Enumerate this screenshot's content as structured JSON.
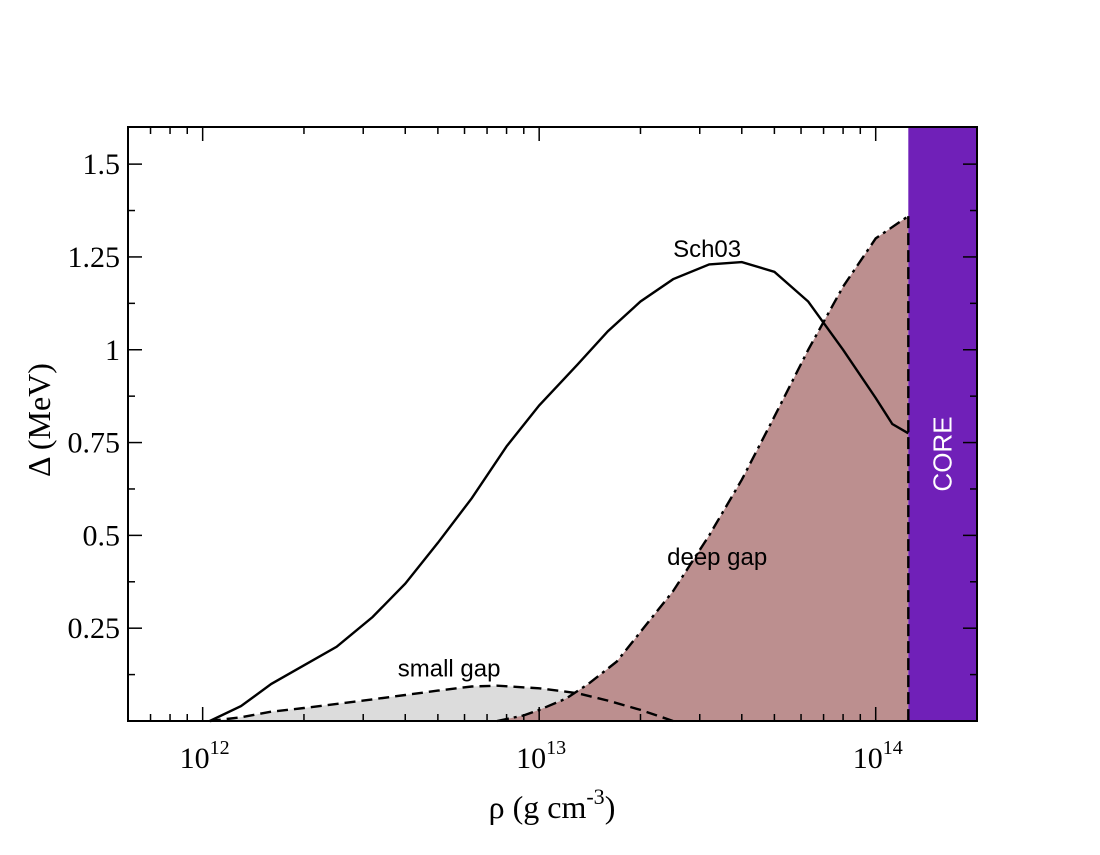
{
  "chart_data": {
    "type": "area",
    "xscale": "log",
    "xlim": [
      600000000000.0,
      200000000000000.0
    ],
    "ylim": [
      0,
      1.6
    ],
    "xlabel": {
      "base": "ρ (g cm",
      "sup": "-3",
      "close": ")"
    },
    "ylabel": "Δ (MeV)",
    "x_ticks": [
      {
        "value": 1000000000000.0,
        "base": "10",
        "exp": "12"
      },
      {
        "value": 10000000000000.0,
        "base": "10",
        "exp": "13"
      },
      {
        "value": 100000000000000.0,
        "base": "10",
        "exp": "14"
      }
    ],
    "y_ticks": [
      {
        "value": 0.25,
        "label": "0.25"
      },
      {
        "value": 0.5,
        "label": "0.5"
      },
      {
        "value": 0.75,
        "label": "0.75"
      },
      {
        "value": 1.0,
        "label": "1"
      },
      {
        "value": 1.25,
        "label": "1.25"
      },
      {
        "value": 1.5,
        "label": "1.5"
      }
    ],
    "series": [
      {
        "name": "Sch03",
        "style": "solid",
        "points": [
          [
            1050000000000.0,
            0.0
          ],
          [
            1300000000000.0,
            0.04
          ],
          [
            1600000000000.0,
            0.1
          ],
          [
            2000000000000.0,
            0.15
          ],
          [
            2500000000000.0,
            0.2
          ],
          [
            3200000000000.0,
            0.28
          ],
          [
            4000000000000.0,
            0.37
          ],
          [
            5000000000000.0,
            0.48
          ],
          [
            6300000000000.0,
            0.6
          ],
          [
            8000000000000.0,
            0.74
          ],
          [
            10000000000000.0,
            0.85
          ],
          [
            13000000000000.0,
            0.96
          ],
          [
            16000000000000.0,
            1.05
          ],
          [
            20000000000000.0,
            1.13
          ],
          [
            25000000000000.0,
            1.19
          ],
          [
            32000000000000.0,
            1.23
          ],
          [
            40000000000000.0,
            1.236
          ],
          [
            50000000000000.0,
            1.21
          ],
          [
            63000000000000.0,
            1.13
          ],
          [
            80000000000000.0,
            1.0
          ],
          [
            100000000000000.0,
            0.87
          ],
          [
            112000000000000.0,
            0.8
          ],
          [
            125000000000000.0,
            0.775
          ]
        ]
      },
      {
        "name": "small gap",
        "style": "dashed",
        "fill": "#dcdcdc",
        "points": [
          [
            1050000000000.0,
            0.0
          ],
          [
            1300000000000.0,
            0.01
          ],
          [
            1600000000000.0,
            0.025
          ],
          [
            2000000000000.0,
            0.035
          ],
          [
            3000000000000.0,
            0.055
          ],
          [
            4000000000000.0,
            0.07
          ],
          [
            5000000000000.0,
            0.082
          ],
          [
            6300000000000.0,
            0.093
          ],
          [
            7500000000000.0,
            0.095
          ],
          [
            10000000000000.0,
            0.088
          ],
          [
            13000000000000.0,
            0.075
          ],
          [
            16000000000000.0,
            0.055
          ],
          [
            20000000000000.0,
            0.03
          ],
          [
            25000000000000.0,
            0.0
          ]
        ]
      },
      {
        "name": "deep gap",
        "style": "dash-dot",
        "fill": "#bc8f8f",
        "points": [
          [
            7500000000000.0,
            0.0
          ],
          [
            9000000000000.0,
            0.015
          ],
          [
            10000000000000.0,
            0.03
          ],
          [
            12000000000000.0,
            0.06
          ],
          [
            14000000000000.0,
            0.1
          ],
          [
            17000000000000.0,
            0.16
          ],
          [
            20000000000000.0,
            0.24
          ],
          [
            25000000000000.0,
            0.35
          ],
          [
            32000000000000.0,
            0.5
          ],
          [
            40000000000000.0,
            0.65
          ],
          [
            50000000000000.0,
            0.82
          ],
          [
            63000000000000.0,
            1.0
          ],
          [
            80000000000000.0,
            1.17
          ],
          [
            100000000000000.0,
            1.3
          ],
          [
            125000000000000.0,
            1.36
          ]
        ]
      }
    ],
    "core": {
      "label": "CORE",
      "x_start": 125000000000000.0,
      "color": "#7020b8"
    },
    "annotations": [
      {
        "text": "Sch03",
        "x": 25000000000000.0,
        "y": 1.25
      },
      {
        "text": "small gap",
        "x": 3800000000000.0,
        "y": 0.12
      },
      {
        "text": "deep gap",
        "x": 24000000000000.0,
        "y": 0.42
      }
    ]
  }
}
